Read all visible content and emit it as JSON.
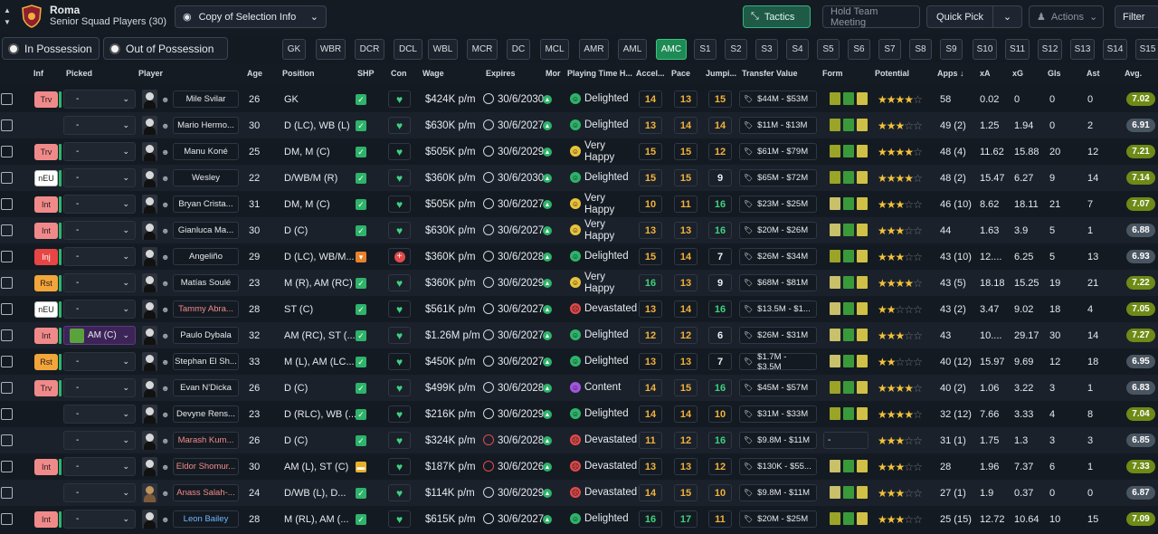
{
  "club": {
    "name": "Roma",
    "subtitle": "Senior Squad Players (30)"
  },
  "toolbar": {
    "copy_selection": "Copy of Selection Info",
    "tactics": "Tactics",
    "team_meeting": "Hold Team Meeting",
    "quick_pick": "Quick Pick",
    "actions": "Actions",
    "filter": "Filter"
  },
  "possession": {
    "in": "In Possession",
    "out": "Out of Possession"
  },
  "positions": [
    "GK",
    "WBR",
    "DCR",
    "DCL",
    "WBL",
    "MCR",
    "DC",
    "MCL",
    "AMR",
    "AML",
    "AMC",
    "S1",
    "S2",
    "S3",
    "S4",
    "S5",
    "S6",
    "S7",
    "S8",
    "S9",
    "S10",
    "S11",
    "S12",
    "S13",
    "S14",
    "S15"
  ],
  "active_position": "AMC",
  "columns": {
    "inf": "Inf",
    "picked": "Picked",
    "player": "Player",
    "age": "Age",
    "position": "Position",
    "shp": "SHP",
    "con": "Con",
    "wage": "Wage",
    "expires": "Expires",
    "mor": "Mor",
    "playing_time": "Playing Time H...",
    "acceleration": "Accel...",
    "pace": "Pace",
    "jumping": "Jumpi...",
    "transfer_value": "Transfer Value",
    "form": "Form",
    "potential": "Potential",
    "apps": "Apps",
    "xa": "xA",
    "xg": "xG",
    "gls": "Gls",
    "ast": "Ast",
    "avg": "Avg."
  },
  "colors": {
    "accent": "#1e8a55",
    "highlight_name": "#f28b8b",
    "link_name": "#6fb6ff",
    "star": "#f2c23a"
  },
  "players": [
    {
      "inf": "Trv",
      "picked": "-",
      "name": "Mile Svilar",
      "age": "26",
      "position": "GK",
      "shp": "ok",
      "con": "green-heart",
      "wage": "$424K p/m",
      "expires": "30/6/2030",
      "happiness": "Delighted",
      "face": "g",
      "acc": "14",
      "pace": "13",
      "jmp": "15",
      "tv": "$44M - $53M",
      "form": "f1 f2 f3",
      "stars": 4,
      "apps": "58",
      "xa": "0.02",
      "xg": "0",
      "gls": "0",
      "ast": "0",
      "avg": "7.02",
      "avg_style": "g"
    },
    {
      "inf": "",
      "picked": "-",
      "name": "Mario Hermo...",
      "age": "30",
      "position": "D (LC), WB (L)",
      "shp": "ok",
      "con": "green-heart",
      "wage": "$630K p/m",
      "expires": "30/6/2027",
      "happiness": "Delighted",
      "face": "g",
      "acc": "13",
      "pace": "14",
      "jmp": "14",
      "tv": "$11M - $13M",
      "form": "f1 f2 f3",
      "stars": 3,
      "apps": "49 (2)",
      "xa": "1.25",
      "xg": "1.94",
      "gls": "0",
      "ast": "2",
      "avg": "6.91",
      "avg_style": "d"
    },
    {
      "inf": "Trv",
      "picked": "-",
      "name": "Manu Koné",
      "age": "25",
      "position": "DM, M (C)",
      "shp": "ok",
      "con": "green-heart",
      "wage": "$505K p/m",
      "expires": "30/6/2029",
      "happiness": "Very Happy",
      "face": "y",
      "acc": "15",
      "pace": "15",
      "jmp": "12",
      "tv": "$61M - $79M",
      "form": "f1 f2 f3",
      "stars": 4,
      "apps": "48 (4)",
      "xa": "11.62",
      "xg": "15.88",
      "gls": "20",
      "ast": "12",
      "avg": "7.21",
      "avg_style": "g"
    },
    {
      "inf": "nEU",
      "picked": "-",
      "name": "Wesley",
      "age": "22",
      "position": "D/WB/M (R)",
      "shp": "ok",
      "con": "green-heart",
      "wage": "$360K p/m",
      "expires": "30/6/2030",
      "happiness": "Delighted",
      "face": "g",
      "acc": "15",
      "pace": "15",
      "jmp": "9",
      "tv": "$65M - $72M",
      "form": "f1 f2 f3",
      "stars": 4,
      "apps": "48 (2)",
      "xa": "15.47",
      "xg": "6.27",
      "gls": "9",
      "ast": "14",
      "avg": "7.14",
      "avg_style": "g"
    },
    {
      "inf": "Int",
      "picked": "-",
      "name": "Bryan Crista...",
      "age": "31",
      "position": "DM, M (C)",
      "shp": "ok",
      "con": "green-heart",
      "wage": "$505K p/m",
      "expires": "30/6/2027",
      "happiness": "Very Happy",
      "face": "y",
      "acc": "10",
      "pace": "11",
      "jmp": "16",
      "tv": "$23M - $25M",
      "form": "f5 f2 f3",
      "stars": 3,
      "apps": "46 (10)",
      "xa": "8.62",
      "xg": "18.11",
      "gls": "21",
      "ast": "7",
      "avg": "7.07",
      "avg_style": "g"
    },
    {
      "inf": "Int",
      "picked": "-",
      "name": "Gianluca Ma...",
      "age": "30",
      "position": "D (C)",
      "shp": "ok",
      "con": "green-heart",
      "wage": "$630K p/m",
      "expires": "30/6/2027",
      "happiness": "Very Happy",
      "face": "y",
      "acc": "13",
      "pace": "13",
      "jmp": "16",
      "tv": "$20M - $26M",
      "form": "f5 f2 f3",
      "stars": 3,
      "apps": "44",
      "xa": "1.63",
      "xg": "3.9",
      "gls": "5",
      "ast": "1",
      "avg": "6.88",
      "avg_style": "d"
    },
    {
      "inf": "Inj",
      "picked": "-",
      "name": "Angeliño",
      "age": "29",
      "position": "D (LC), WB/M...",
      "shp": "warn",
      "con": "red-cross",
      "wage": "$360K p/m",
      "expires": "30/6/2028",
      "happiness": "Delighted",
      "face": "g",
      "acc": "15",
      "pace": "14",
      "jmp": "7",
      "tv": "$26M - $34M",
      "form": "f1 f2 f3",
      "stars": 3,
      "apps": "43 (10)",
      "xa": "12....",
      "xg": "6.25",
      "gls": "5",
      "ast": "13",
      "avg": "6.93",
      "avg_style": "d"
    },
    {
      "inf": "Rst",
      "picked": "-",
      "name": "Matías Soulé",
      "age": "23",
      "position": "M (R), AM (RC)",
      "shp": "ok",
      "con": "green-heart",
      "wage": "$360K p/m",
      "expires": "30/6/2029",
      "happiness": "Very Happy",
      "face": "y",
      "acc": "16",
      "pace": "13",
      "jmp": "9",
      "tv": "$68M - $81M",
      "form": "f5 f2 f3",
      "stars": 4,
      "apps": "43 (5)",
      "xa": "18.18",
      "xg": "15.25",
      "gls": "19",
      "ast": "21",
      "avg": "7.22",
      "avg_style": "g"
    },
    {
      "inf": "nEU",
      "picked": "-",
      "name": "Tammy Abra...",
      "age": "28",
      "position": "ST (C)",
      "shp": "ok",
      "con": "green-heart",
      "wage": "$561K p/m",
      "expires": "30/6/2027",
      "happiness": "Devastated",
      "face": "r",
      "acc": "13",
      "pace": "14",
      "jmp": "16",
      "tv": "$13.5M - $1...",
      "form": "f5 f2 f3",
      "stars": 2,
      "apps": "43 (2)",
      "xa": "3.47",
      "xg": "9.02",
      "gls": "18",
      "ast": "4",
      "avg": "7.05",
      "avg_style": "g"
    },
    {
      "inf": "Int",
      "picked": "AM (C)",
      "name": "Paulo Dybala",
      "age": "32",
      "position": "AM (RC), ST (...",
      "shp": "ok",
      "con": "green-heart",
      "wage": "$1.26M p/m",
      "expires": "30/6/2027",
      "happiness": "Delighted",
      "face": "g",
      "acc": "12",
      "pace": "12",
      "jmp": "6",
      "tv": "$26M - $31M",
      "form": "f5 f2 f3",
      "stars": 3,
      "apps": "43",
      "xa": "10....",
      "xg": "29.17",
      "gls": "30",
      "ast": "14",
      "avg": "7.27",
      "avg_style": "g"
    },
    {
      "inf": "Rst",
      "picked": "-",
      "name": "Stephan El Sh...",
      "age": "33",
      "position": "M (L), AM (LC...",
      "shp": "ok",
      "con": "green-heart",
      "wage": "$450K p/m",
      "expires": "30/6/2027",
      "happiness": "Delighted",
      "face": "g",
      "acc": "13",
      "pace": "13",
      "jmp": "7",
      "tv": "$1.7M - $3.5M",
      "form": "f5 f2 f3",
      "stars": 2,
      "apps": "40 (12)",
      "xa": "15.97",
      "xg": "9.69",
      "gls": "12",
      "ast": "18",
      "avg": "6.95",
      "avg_style": "d"
    },
    {
      "inf": "Trv",
      "picked": "-",
      "name": "Evan N'Dicka",
      "age": "26",
      "position": "D (C)",
      "shp": "ok",
      "con": "green-heart",
      "wage": "$499K p/m",
      "expires": "30/6/2028",
      "happiness": "Content",
      "face": "p",
      "acc": "14",
      "pace": "15",
      "jmp": "16",
      "tv": "$45M - $57M",
      "form": "f1 f2 f3",
      "stars": 4,
      "apps": "40 (2)",
      "xa": "1.06",
      "xg": "3.22",
      "gls": "3",
      "ast": "1",
      "avg": "6.83",
      "avg_style": "d"
    },
    {
      "inf": "",
      "picked": "-",
      "name": "Devyne Rens...",
      "age": "23",
      "position": "D (RLC), WB (...",
      "shp": "ok",
      "con": "green-heart",
      "wage": "$216K p/m",
      "expires": "30/6/2029",
      "happiness": "Delighted",
      "face": "g",
      "acc": "14",
      "pace": "14",
      "jmp": "10",
      "tv": "$31M - $33M",
      "form": "f1 f2 f3",
      "stars": 4,
      "apps": "32 (12)",
      "xa": "7.66",
      "xg": "3.33",
      "gls": "4",
      "ast": "8",
      "avg": "7.04",
      "avg_style": "g"
    },
    {
      "inf": "",
      "picked": "-",
      "name": "Marash Kum...",
      "age": "26",
      "position": "D (C)",
      "shp": "ok",
      "con": "green-heart",
      "wage": "$324K p/m",
      "expires": "30/6/2028",
      "happiness": "Devastated",
      "face": "r",
      "acc": "11",
      "pace": "12",
      "jmp": "16",
      "tv": "$9.8M - $11M",
      "form": "none",
      "stars": 3,
      "apps": "31 (1)",
      "xa": "1.75",
      "xg": "1.3",
      "gls": "3",
      "ast": "3",
      "avg": "6.85",
      "avg_style": "d"
    },
    {
      "inf": "Int",
      "picked": "-",
      "name": "Eldor Shomur...",
      "age": "30",
      "position": "AM (L), ST (C)",
      "shp": "yel",
      "con": "green-heart",
      "wage": "$187K p/m",
      "expires": "30/6/2026",
      "happiness": "Devastated",
      "face": "r",
      "acc": "13",
      "pace": "13",
      "jmp": "12",
      "tv": "$130K - $55...",
      "form": "f5 f2 f3",
      "stars": 3,
      "apps": "28",
      "xa": "1.96",
      "xg": "7.37",
      "gls": "6",
      "ast": "1",
      "avg": "7.33",
      "avg_style": "g"
    },
    {
      "inf": "",
      "picked": "-",
      "name": "Anass Salah-...",
      "age": "24",
      "position": "D/WB (L), D...",
      "shp": "ok",
      "con": "green-heart",
      "wage": "$114K p/m",
      "expires": "30/6/2029",
      "happiness": "Devastated",
      "face": "r",
      "acc": "14",
      "pace": "15",
      "jmp": "10",
      "tv": "$9.8M - $11M",
      "form": "f5 f2 f3",
      "stars": 3,
      "apps": "27 (1)",
      "xa": "1.9",
      "xg": "0.37",
      "gls": "0",
      "ast": "0",
      "avg": "6.87",
      "avg_style": "d"
    },
    {
      "inf": "Int",
      "picked": "-",
      "name": "Leon Bailey",
      "age": "28",
      "position": "M (RL), AM (...",
      "shp": "ok",
      "con": "green-heart",
      "wage": "$615K p/m",
      "expires": "30/6/2027",
      "happiness": "Delighted",
      "face": "g",
      "acc": "16",
      "pace": "17",
      "jmp": "11",
      "tv": "$20M - $25M",
      "form": "f1 f2 f3",
      "stars": 3,
      "apps": "25 (15)",
      "xa": "12.72",
      "xg": "10.64",
      "gls": "10",
      "ast": "15",
      "avg": "7.09",
      "avg_style": "g"
    }
  ]
}
